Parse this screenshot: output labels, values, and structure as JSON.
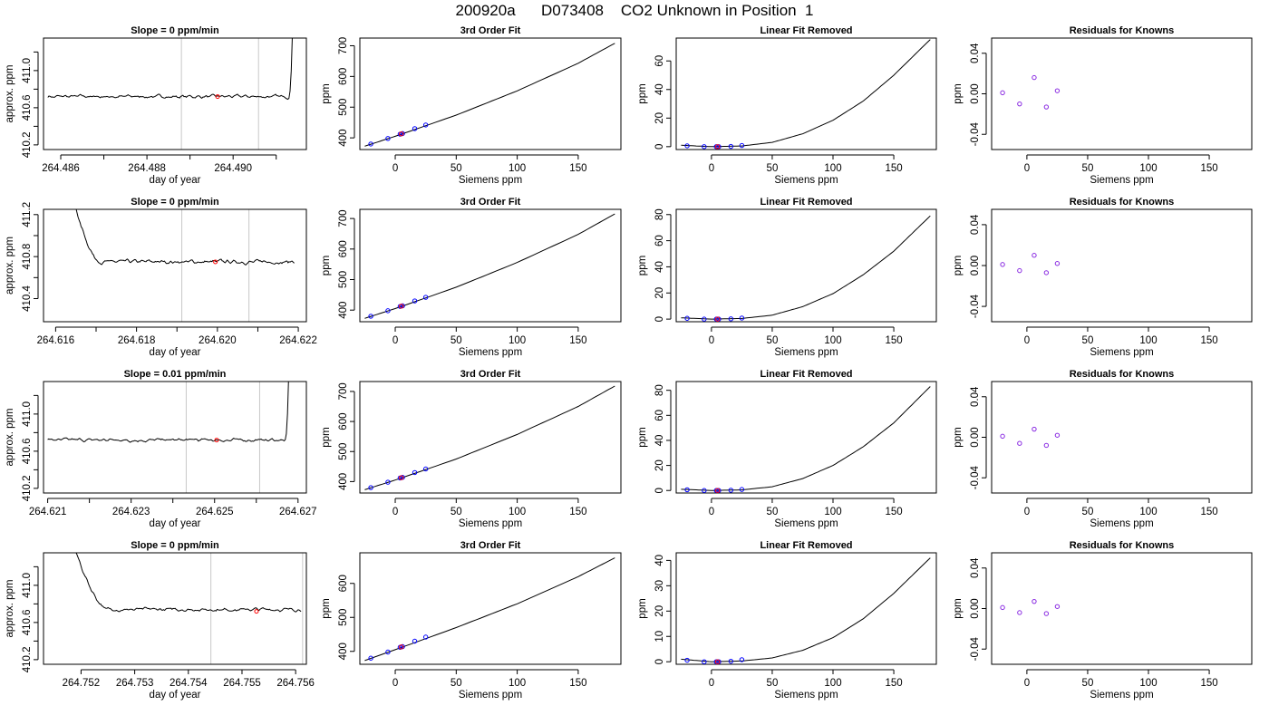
{
  "figure": {
    "title": "200920a      D073408    CO2 Unknown in Position  1"
  },
  "chart_data": [
    {
      "type": "line",
      "row": 1,
      "col": 1,
      "title": "Slope =  0  ppm/min",
      "xlabel": "day of year",
      "ylabel": "approx. ppm",
      "xlim": [
        264.4856,
        264.4917
      ],
      "ylim": [
        410.15,
        411.35
      ],
      "xticks": [
        264.486,
        264.488,
        264.49
      ],
      "xticklabels": [
        "264.486",
        "264.488",
        "264.490"
      ],
      "xminor": [
        264.487,
        264.489,
        264.491
      ],
      "yticks": [
        410.2,
        410.6,
        411.0
      ],
      "yticklabels": [
        "410.2",
        "410.6",
        "411.0"
      ],
      "yminor": [
        410.4,
        410.8,
        411.2
      ],
      "vlines": [
        264.4888,
        264.49059
      ],
      "trace": {
        "x_start": 264.4857,
        "x_end": 264.4914,
        "base": 410.72,
        "end_rise": 264.4913
      },
      "marker": {
        "x": 264.48964,
        "y": 410.72
      }
    },
    {
      "type": "scatter",
      "row": 1,
      "col": 2,
      "title": "3rd Order Fit",
      "xlabel": "Siemens ppm",
      "ylabel": "ppm",
      "xlim": [
        -29,
        185
      ],
      "ylim": [
        362,
        725
      ],
      "xticks": [
        0,
        50,
        100,
        150
      ],
      "xticklabels": [
        "0",
        "50",
        "100",
        "150"
      ],
      "yticks": [
        400,
        500,
        600,
        700
      ],
      "yticklabels": [
        "400",
        "500",
        "600",
        "700"
      ],
      "points": {
        "x": [
          -20,
          -6,
          4,
          6,
          16,
          25
        ],
        "y": [
          380,
          398,
          412,
          414,
          430,
          442
        ]
      },
      "unknown": {
        "x": 5,
        "y": 413
      },
      "curve": {
        "x": [
          -25,
          0,
          50,
          100,
          150,
          180
        ],
        "y": [
          373,
          405,
          474,
          553,
          643,
          708
        ]
      }
    },
    {
      "type": "scatter",
      "row": 1,
      "col": 3,
      "title": "Linear Fit Removed",
      "xlabel": "Siemens ppm",
      "ylabel": "ppm",
      "xlim": [
        -29,
        185
      ],
      "ylim": [
        -2,
        76
      ],
      "xticks": [
        0,
        50,
        100,
        150
      ],
      "xticklabels": [
        "0",
        "50",
        "100",
        "150"
      ],
      "yticks": [
        0,
        20,
        40,
        60
      ],
      "yticklabels": [
        "0",
        "20",
        "40",
        "60"
      ],
      "points": {
        "x": [
          -20,
          -6,
          4,
          6,
          16,
          25
        ],
        "y": [
          0.6,
          0,
          0,
          0,
          0.2,
          0.8
        ]
      },
      "unknown": {
        "x": 5,
        "y": 0
      },
      "curve": {
        "x": [
          -25,
          0,
          25,
          50,
          75,
          100,
          125,
          150,
          180
        ],
        "y": [
          1,
          0,
          0.5,
          3,
          9,
          18.5,
          32,
          50,
          75
        ]
      }
    },
    {
      "type": "scatter",
      "row": 1,
      "col": 4,
      "title": "Residuals for Knowns",
      "xlabel": "Siemens ppm",
      "ylabel": "ppm",
      "xlim": [
        -29,
        185
      ],
      "ylim": [
        -0.055,
        0.055
      ],
      "xticks": [
        0,
        50,
        100,
        150
      ],
      "xticklabels": [
        "0",
        "50",
        "100",
        "150"
      ],
      "yticks": [
        -0.04,
        0.0,
        0.04
      ],
      "yticklabels": [
        "-0.04",
        "0.00",
        "0.04"
      ],
      "points": {
        "x": [
          -20,
          -6,
          6,
          16,
          25
        ],
        "y": [
          0.001,
          -0.01,
          0.016,
          -0.013,
          0.003
        ]
      }
    },
    {
      "type": "line",
      "row": 2,
      "col": 1,
      "title": "Slope =  0  ppm/min",
      "xlabel": "day of year",
      "ylabel": "approx. ppm",
      "xlim": [
        264.6157,
        264.6222
      ],
      "ylim": [
        410.18,
        411.25
      ],
      "xticks": [
        264.616,
        264.618,
        264.62,
        264.622
      ],
      "xticklabels": [
        "264.616",
        "264.618",
        "264.620",
        "264.622"
      ],
      "xminor": [
        264.617,
        264.619,
        264.621
      ],
      "yticks": [
        410.4,
        410.8,
        411.2
      ],
      "yticklabels": [
        "410.4",
        "410.8",
        "411.2"
      ],
      "yminor": [
        410.6,
        411.0
      ],
      "vlines": [
        264.61912,
        264.62078
      ],
      "trace": {
        "x_start": 264.6163,
        "x_end": 264.6219,
        "base": 410.75,
        "start_drop": 264.6171
      },
      "marker": {
        "x": 264.61995,
        "y": 410.75
      }
    },
    {
      "type": "scatter",
      "row": 2,
      "col": 2,
      "title": "3rd Order Fit",
      "xlabel": "Siemens ppm",
      "ylabel": "ppm",
      "xlim": [
        -29,
        185
      ],
      "ylim": [
        362,
        730
      ],
      "xticks": [
        0,
        50,
        100,
        150
      ],
      "xticklabels": [
        "0",
        "50",
        "100",
        "150"
      ],
      "yticks": [
        400,
        500,
        600,
        700
      ],
      "yticklabels": [
        "400",
        "500",
        "600",
        "700"
      ],
      "points": {
        "x": [
          -20,
          -6,
          4,
          6,
          16,
          25
        ],
        "y": [
          380,
          398,
          412,
          414,
          430,
          442
        ]
      },
      "unknown": {
        "x": 5,
        "y": 413
      },
      "curve": {
        "x": [
          -25,
          0,
          50,
          100,
          150,
          180
        ],
        "y": [
          373,
          405,
          475,
          556,
          648,
          715
        ]
      }
    },
    {
      "type": "scatter",
      "row": 2,
      "col": 3,
      "title": "Linear Fit Removed",
      "xlabel": "Siemens ppm",
      "ylabel": "ppm",
      "xlim": [
        -29,
        185
      ],
      "ylim": [
        -2,
        84
      ],
      "xticks": [
        0,
        50,
        100,
        150
      ],
      "xticklabels": [
        "0",
        "50",
        "100",
        "150"
      ],
      "yticks": [
        0,
        20,
        40,
        60,
        80
      ],
      "yticklabels": [
        "0",
        "20",
        "40",
        "60",
        "80"
      ],
      "points": {
        "x": [
          -20,
          -6,
          4,
          6,
          16,
          25
        ],
        "y": [
          0.6,
          0,
          0,
          0,
          0.2,
          0.8
        ]
      },
      "unknown": {
        "x": 5,
        "y": 0
      },
      "curve": {
        "x": [
          -25,
          0,
          25,
          50,
          75,
          100,
          125,
          150,
          180
        ],
        "y": [
          1,
          0,
          0.5,
          3,
          9.5,
          19.5,
          34,
          52,
          79
        ]
      }
    },
    {
      "type": "scatter",
      "row": 2,
      "col": 4,
      "title": "Residuals for Knowns",
      "xlabel": "Siemens ppm",
      "ylabel": "ppm",
      "xlim": [
        -29,
        185
      ],
      "ylim": [
        -0.055,
        0.055
      ],
      "xticks": [
        0,
        50,
        100,
        150
      ],
      "xticklabels": [
        "0",
        "50",
        "100",
        "150"
      ],
      "yticks": [
        -0.04,
        0.0,
        0.04
      ],
      "yticklabels": [
        "-0.04",
        "0.00",
        "0.04"
      ],
      "points": {
        "x": [
          -20,
          -6,
          6,
          16,
          25
        ],
        "y": [
          0.001,
          -0.005,
          0.01,
          -0.007,
          0.002
        ]
      }
    },
    {
      "type": "line",
      "row": 3,
      "col": 1,
      "title": "Slope =  0.01  ppm/min",
      "xlabel": "day of year",
      "ylabel": "approx. ppm",
      "xlim": [
        264.6209,
        264.6272
      ],
      "ylim": [
        410.15,
        411.35
      ],
      "xticks": [
        264.621,
        264.623,
        264.625,
        264.627
      ],
      "xticklabels": [
        "264.621",
        "264.623",
        "264.625",
        "264.627"
      ],
      "xminor": [
        264.622,
        264.624,
        264.626
      ],
      "yticks": [
        410.2,
        410.6,
        411.0
      ],
      "yticklabels": [
        "410.2",
        "410.6",
        "411.0"
      ],
      "yminor": [
        410.4,
        410.8,
        411.2
      ],
      "vlines": [
        264.62432,
        264.62608
      ],
      "trace": {
        "x_start": 264.621,
        "x_end": 264.6268,
        "base": 410.72,
        "end_rise": 264.6267
      },
      "marker": {
        "x": 264.62505,
        "y": 410.72
      }
    },
    {
      "type": "scatter",
      "row": 3,
      "col": 2,
      "title": "3rd Order Fit",
      "xlabel": "Siemens ppm",
      "ylabel": "ppm",
      "xlim": [
        -29,
        185
      ],
      "ylim": [
        362,
        733
      ],
      "xticks": [
        0,
        50,
        100,
        150
      ],
      "xticklabels": [
        "0",
        "50",
        "100",
        "150"
      ],
      "yticks": [
        400,
        500,
        600,
        700
      ],
      "yticklabels": [
        "400",
        "500",
        "600",
        "700"
      ],
      "points": {
        "x": [
          -20,
          -6,
          4,
          6,
          16,
          25
        ],
        "y": [
          380,
          398,
          412,
          414,
          430,
          442
        ]
      },
      "unknown": {
        "x": 5,
        "y": 413
      },
      "curve": {
        "x": [
          -25,
          0,
          50,
          100,
          150,
          180
        ],
        "y": [
          373,
          405,
          475,
          557,
          650,
          718
        ]
      }
    },
    {
      "type": "scatter",
      "row": 3,
      "col": 3,
      "title": "Linear Fit Removed",
      "xlabel": "Siemens ppm",
      "ylabel": "ppm",
      "xlim": [
        -29,
        185
      ],
      "ylim": [
        -2,
        87
      ],
      "xticks": [
        0,
        50,
        100,
        150
      ],
      "xticklabels": [
        "0",
        "50",
        "100",
        "150"
      ],
      "yticks": [
        0,
        20,
        40,
        60,
        80
      ],
      "yticklabels": [
        "0",
        "20",
        "40",
        "60",
        "80"
      ],
      "points": {
        "x": [
          -20,
          -6,
          4,
          6,
          16,
          25
        ],
        "y": [
          0.6,
          0,
          0,
          0,
          0.2,
          0.8
        ]
      },
      "unknown": {
        "x": 5,
        "y": 0
      },
      "curve": {
        "x": [
          -25,
          0,
          25,
          50,
          75,
          100,
          125,
          150,
          180
        ],
        "y": [
          1,
          0,
          0.5,
          3,
          9.5,
          20,
          35,
          54,
          83
        ]
      }
    },
    {
      "type": "scatter",
      "row": 3,
      "col": 4,
      "title": "Residuals for Knowns",
      "xlabel": "Siemens ppm",
      "ylabel": "ppm",
      "xlim": [
        -29,
        185
      ],
      "ylim": [
        -0.055,
        0.055
      ],
      "xticks": [
        0,
        50,
        100,
        150
      ],
      "xticklabels": [
        "0",
        "50",
        "100",
        "150"
      ],
      "yticks": [
        -0.04,
        0.0,
        0.04
      ],
      "yticklabels": [
        "-0.04",
        "0.00",
        "0.04"
      ],
      "points": {
        "x": [
          -20,
          -6,
          6,
          16,
          25
        ],
        "y": [
          0.001,
          -0.006,
          0.008,
          -0.008,
          0.002
        ]
      }
    },
    {
      "type": "line",
      "row": 4,
      "col": 1,
      "title": "Slope =  0  ppm/min",
      "xlabel": "day of year",
      "ylabel": "approx. ppm",
      "xlim": [
        264.7513,
        264.7562
      ],
      "ylim": [
        410.15,
        411.35
      ],
      "xticks": [
        264.752,
        264.753,
        264.754,
        264.755,
        264.756
      ],
      "xticklabels": [
        "264.752",
        "264.753",
        "264.754",
        "264.755",
        "264.756"
      ],
      "xminor": [],
      "yticks": [
        410.2,
        410.6,
        411.0
      ],
      "yticklabels": [
        "410.2",
        "410.6",
        "411.0"
      ],
      "yminor": [
        410.4,
        410.8,
        411.2
      ],
      "vlines": [
        264.75442,
        264.75613
      ],
      "trace": {
        "x_start": 264.7518,
        "x_end": 264.7561,
        "base": 410.74,
        "start_drop": 264.7525
      },
      "marker": {
        "x": 264.75527,
        "y": 410.72
      }
    },
    {
      "type": "scatter",
      "row": 4,
      "col": 2,
      "title": "3rd Order Fit",
      "xlabel": "Siemens ppm",
      "ylabel": "ppm",
      "xlim": [
        -29,
        185
      ],
      "ylim": [
        362,
        690
      ],
      "xticks": [
        0,
        50,
        100,
        150
      ],
      "xticklabels": [
        "0",
        "50",
        "100",
        "150"
      ],
      "yticks": [
        400,
        500,
        600
      ],
      "yticklabels": [
        "400",
        "500",
        "600"
      ],
      "points": {
        "x": [
          -20,
          -6,
          4,
          6,
          16,
          25
        ],
        "y": [
          380,
          398,
          412,
          414,
          430,
          442
        ]
      },
      "unknown": {
        "x": 5,
        "y": 413
      },
      "curve": {
        "x": [
          -25,
          0,
          50,
          100,
          150,
          180
        ],
        "y": [
          373,
          405,
          470,
          540,
          620,
          675
        ]
      }
    },
    {
      "type": "scatter",
      "row": 4,
      "col": 3,
      "title": "Linear Fit Removed",
      "xlabel": "Siemens ppm",
      "ylabel": "ppm",
      "xlim": [
        -29,
        185
      ],
      "ylim": [
        -1,
        43
      ],
      "xticks": [
        0,
        50,
        100,
        150
      ],
      "xticklabels": [
        "0",
        "50",
        "100",
        "150"
      ],
      "yticks": [
        0,
        10,
        20,
        30,
        40
      ],
      "yticklabels": [
        "0",
        "10",
        "20",
        "30",
        "40"
      ],
      "points": {
        "x": [
          -20,
          -6,
          4,
          6,
          16,
          25
        ],
        "y": [
          0.6,
          0,
          0,
          0,
          0.2,
          0.8
        ]
      },
      "unknown": {
        "x": 5,
        "y": 0
      },
      "curve": {
        "x": [
          -25,
          0,
          25,
          50,
          75,
          100,
          125,
          150,
          180
        ],
        "y": [
          1,
          0,
          0.3,
          1.5,
          4.5,
          9.5,
          17,
          27,
          41
        ]
      }
    },
    {
      "type": "scatter",
      "row": 4,
      "col": 4,
      "title": "Residuals for Knowns",
      "xlabel": "Siemens ppm",
      "ylabel": "ppm",
      "xlim": [
        -29,
        185
      ],
      "ylim": [
        -0.055,
        0.055
      ],
      "xticks": [
        0,
        50,
        100,
        150
      ],
      "xticklabels": [
        "0",
        "50",
        "100",
        "150"
      ],
      "yticks": [
        -0.04,
        0.0,
        0.04
      ],
      "yticklabels": [
        "-0.04",
        "0.00",
        "0.04"
      ],
      "points": {
        "x": [
          -20,
          -6,
          6,
          16,
          25
        ],
        "y": [
          0.001,
          -0.004,
          0.007,
          -0.005,
          0.002
        ]
      }
    }
  ],
  "colors": {
    "axis": "#000000",
    "trace": "#000000",
    "vline": "#c8c8c8",
    "known_point": "#0000ff",
    "residual_point": "#8a2be2",
    "unknown_point": "#ff0000"
  }
}
